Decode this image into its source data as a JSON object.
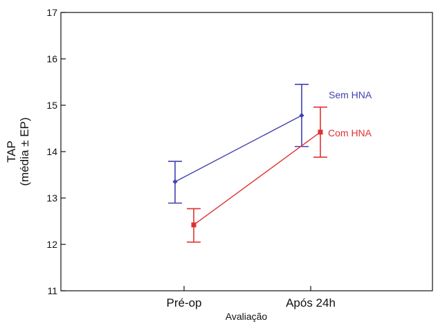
{
  "chart_data": {
    "type": "line",
    "xlabel": "Avaliação",
    "ylabel_line1": "TAP",
    "ylabel_line2": "(média ± EP)",
    "categories": [
      "Pré-op",
      "Após 24h"
    ],
    "ylim": [
      11,
      17
    ],
    "yticks": [
      "11",
      "12",
      "13",
      "14",
      "15",
      "16",
      "17"
    ],
    "grid": false,
    "legend": "inline",
    "series": [
      {
        "name": "Sem HNA",
        "color": "#4040b0",
        "marker": "diamond",
        "values": [
          13.35,
          14.78
        ],
        "lower": [
          12.89,
          14.11
        ],
        "upper": [
          13.79,
          15.45
        ]
      },
      {
        "name": "Com HNA",
        "color": "#e03030",
        "marker": "square",
        "values": [
          12.42,
          14.42
        ],
        "lower": [
          12.05,
          13.88
        ],
        "upper": [
          12.77,
          14.96
        ]
      }
    ]
  }
}
